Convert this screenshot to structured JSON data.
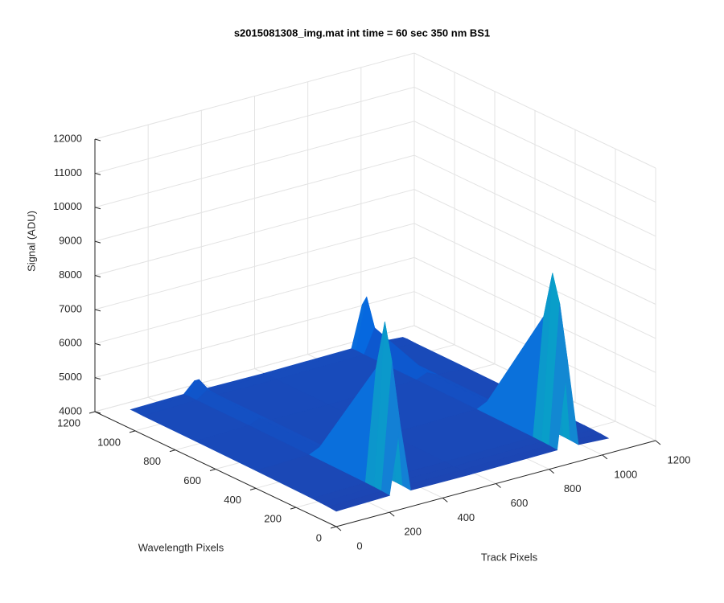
{
  "chart_data": {
    "type": "surface3d",
    "title": "s2015081308_img.mat int time = 60 sec  350 nm BS1",
    "xlabel": "Track Pixels",
    "ylabel": "Wavelength Pixels",
    "zlabel": "Signal (ADU)",
    "xlim": [
      0,
      1200
    ],
    "ylim": [
      0,
      1200
    ],
    "zlim": [
      4000,
      12000
    ],
    "xticks": [
      0,
      200,
      400,
      600,
      800,
      1000,
      1200
    ],
    "yticks": [
      0,
      200,
      400,
      600,
      800,
      1000,
      1200
    ],
    "zticks": [
      4000,
      5000,
      6000,
      7000,
      8000,
      9000,
      10000,
      11000,
      12000
    ],
    "grid": true,
    "colormap": "parula",
    "x": [
      0,
      200,
      240,
      280,
      500,
      830,
      870,
      910,
      1023
    ],
    "y": [
      0,
      40,
      76,
      120,
      400,
      700,
      960,
      1000,
      1023
    ],
    "z": [
      [
        4450,
        4490,
        6500,
        4480,
        4470,
        4500,
        7000,
        4490,
        4440
      ],
      [
        4470,
        4510,
        8200,
        4500,
        4490,
        4520,
        8600,
        4510,
        4460
      ],
      [
        4480,
        4520,
        9300,
        4510,
        4500,
        4530,
        9400,
        4520,
        4470
      ],
      [
        4490,
        4530,
        7800,
        4520,
        4510,
        4540,
        8000,
        4530,
        4480
      ],
      [
        4520,
        4560,
        4700,
        4550,
        4540,
        4570,
        4720,
        4560,
        4500
      ],
      [
        4540,
        4580,
        4700,
        4570,
        4560,
        4590,
        4720,
        4580,
        4520
      ],
      [
        4550,
        4590,
        4800,
        4580,
        4570,
        4600,
        5300,
        4590,
        4530
      ],
      [
        4560,
        4600,
        5000,
        4590,
        4580,
        4610,
        6100,
        4600,
        4540
      ],
      [
        4560,
        4590,
        4900,
        4580,
        4570,
        4600,
        5800,
        4590,
        4530
      ]
    ]
  }
}
